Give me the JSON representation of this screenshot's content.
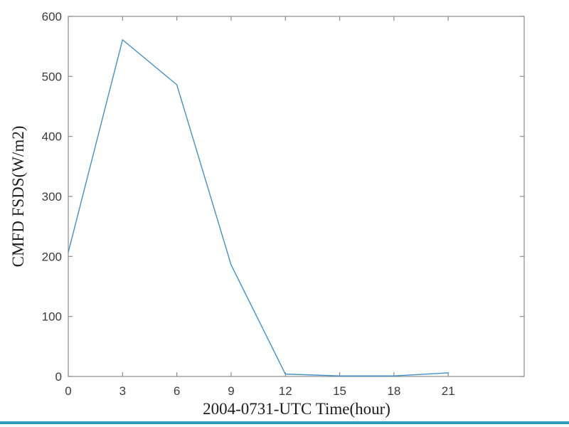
{
  "figure": {
    "background": "#ffffff"
  },
  "chart_data": {
    "type": "line",
    "title": "",
    "xlabel": "2004-0731-UTC Time(hour)",
    "ylabel": "CMFD FSDS(W/m2)",
    "x": [
      0,
      3,
      6,
      9,
      12,
      15,
      18,
      21
    ],
    "series": [
      {
        "name": "CMFD FSDS",
        "values": [
          207,
          561,
          486,
          186,
          4,
          1,
          1,
          6
        ]
      }
    ],
    "xticks": [
      0,
      3,
      6,
      9,
      12,
      15,
      18,
      21
    ],
    "yticks": [
      0,
      100,
      200,
      300,
      400,
      500,
      600
    ],
    "xlim": [
      0,
      25.2
    ],
    "ylim": [
      0,
      600
    ],
    "grid": false,
    "legend": "none",
    "box": true,
    "tick_direction": "in",
    "line_color": "#4191cb",
    "axis_color": "#8c8c8c",
    "tick_label_color": "#3b3b3b",
    "label_color": "#1c1c1c"
  },
  "footer": {
    "accent_bar_color": "#2e9dbd"
  }
}
